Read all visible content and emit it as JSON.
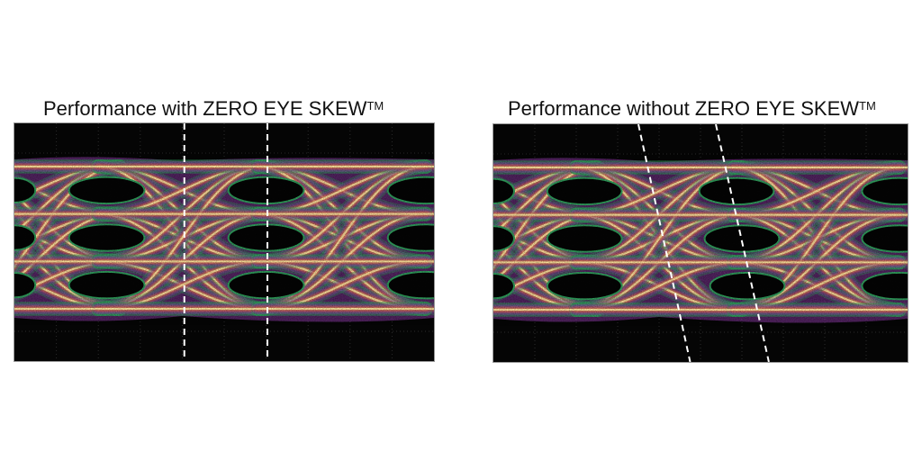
{
  "panels": [
    {
      "title_main": "Performance with ZERO EYE SKEW",
      "title_tm": "TM",
      "skewed": false
    },
    {
      "title_main": "Performance without ZERO EYE SKEW",
      "title_tm": "TM",
      "skewed": true
    }
  ],
  "colors": {
    "background": "#050505",
    "hot": "#ffe9a0",
    "warm": "#ff9a2e",
    "mid": "#e23a5a",
    "cool": "#8c3aa6",
    "edge": "#2f9a5a",
    "marker": "#ffffff"
  }
}
